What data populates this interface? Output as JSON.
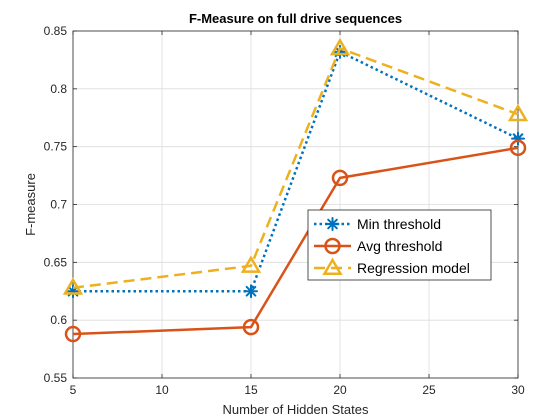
{
  "chart_data": {
    "type": "line",
    "title": "F-Measure on full drive sequences",
    "xlabel": "Number of Hidden States",
    "ylabel": "F-measure",
    "xlim": [
      5,
      30
    ],
    "ylim": [
      0.55,
      0.85
    ],
    "xticks": [
      5,
      10,
      15,
      20,
      25,
      30
    ],
    "yticks": [
      0.55,
      0.6,
      0.65,
      0.7,
      0.75,
      0.8,
      0.85
    ],
    "xtick_labels": [
      "5",
      "10",
      "15",
      "20",
      "25",
      "30"
    ],
    "ytick_labels": [
      "0.55",
      "0.6",
      "0.65",
      "0.7",
      "0.75",
      "0.8",
      "0.85"
    ],
    "grid": true,
    "legend_position": "right-center",
    "x": [
      5,
      15,
      20,
      30
    ],
    "series": [
      {
        "name": "Min threshold",
        "values": [
          0.625,
          0.625,
          0.832,
          0.757
        ],
        "color": "#0072BD",
        "line": "dotted",
        "marker": "asterisk"
      },
      {
        "name": "Avg threshold",
        "values": [
          0.588,
          0.594,
          0.723,
          0.749
        ],
        "color": "#D95319",
        "line": "solid",
        "marker": "circle"
      },
      {
        "name": "Regression model",
        "values": [
          0.628,
          0.647,
          0.835,
          0.778
        ],
        "color": "#EDB120",
        "line": "dashed",
        "marker": "triangle"
      }
    ]
  }
}
